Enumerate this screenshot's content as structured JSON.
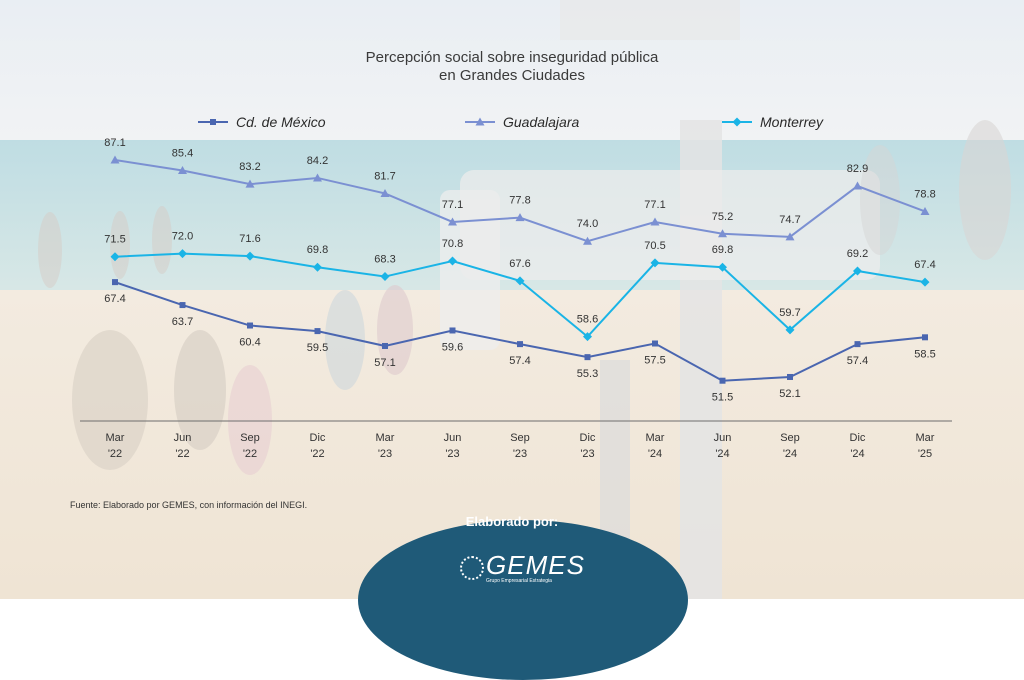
{
  "chart_data": {
    "type": "line",
    "title": "Percepción social sobre inseguridad pública",
    "subtitle": "en Grandes Ciudades",
    "categories": [
      [
        "Mar",
        "'22"
      ],
      [
        "Jun",
        "'22"
      ],
      [
        "Sep",
        "'22"
      ],
      [
        "Dic",
        "'22"
      ],
      [
        "Mar",
        "'23"
      ],
      [
        "Jun",
        "'23"
      ],
      [
        "Sep",
        "'23"
      ],
      [
        "Dic",
        "'23"
      ],
      [
        "Mar",
        "'24"
      ],
      [
        "Jun",
        "'24"
      ],
      [
        "Sep",
        "'24"
      ],
      [
        "Dic",
        "'24"
      ],
      [
        "Mar",
        "'25"
      ]
    ],
    "series": [
      {
        "name": "Cd. de México",
        "color": "#4a66b0",
        "marker": "square",
        "values": [
          67.4,
          63.7,
          60.4,
          59.5,
          57.1,
          59.6,
          57.4,
          55.3,
          57.5,
          51.5,
          52.1,
          57.4,
          58.5
        ]
      },
      {
        "name": "Guadalajara",
        "color": "#7b90d2",
        "marker": "triangle",
        "values": [
          87.1,
          85.4,
          83.2,
          84.2,
          81.7,
          77.1,
          77.8,
          74.0,
          77.1,
          75.2,
          74.7,
          82.9,
          78.8
        ]
      },
      {
        "name": "Monterrey",
        "color": "#1ab4e6",
        "marker": "diamond",
        "values": [
          71.5,
          72.0,
          71.6,
          69.8,
          68.3,
          70.8,
          67.6,
          58.6,
          70.5,
          69.8,
          59.7,
          69.2,
          67.4
        ]
      }
    ],
    "legend_position": "top",
    "grid": false
  },
  "source": "Fuente: Elaborado por GEMES, con información del INEGI.",
  "badge": {
    "title": "Elaborado por:",
    "logo": "GEMES",
    "tagline": "Grupo Empresarial Estrategia"
  }
}
